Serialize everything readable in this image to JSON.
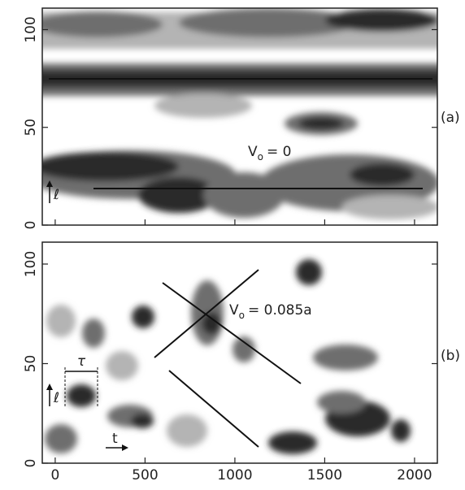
{
  "chart_data": [
    {
      "type": "density",
      "panel_label": "(a)",
      "annotation": {
        "symbol": "V",
        "subscript": "o",
        "rest": "= 0"
      },
      "y_axis_label": "ℓ",
      "xlim": [
        -72,
        2127
      ],
      "ylim": [
        0,
        111
      ],
      "xticks": [
        0,
        500,
        1000,
        1500,
        2000
      ],
      "yticks": [
        0,
        50,
        100
      ]
    },
    {
      "type": "density",
      "panel_label": "(b)",
      "annotation": {
        "symbol": "V",
        "subscript": "o",
        "rest": "= 0.085a"
      },
      "y_axis_label": "ℓ",
      "x_axis_label": "t",
      "marker_label": "τ",
      "xlim": [
        -72,
        2127
      ],
      "ylim": [
        0,
        111
      ],
      "xticks": [
        0,
        500,
        1000,
        1500,
        2000
      ],
      "yticks": [
        0,
        50,
        100
      ]
    }
  ]
}
